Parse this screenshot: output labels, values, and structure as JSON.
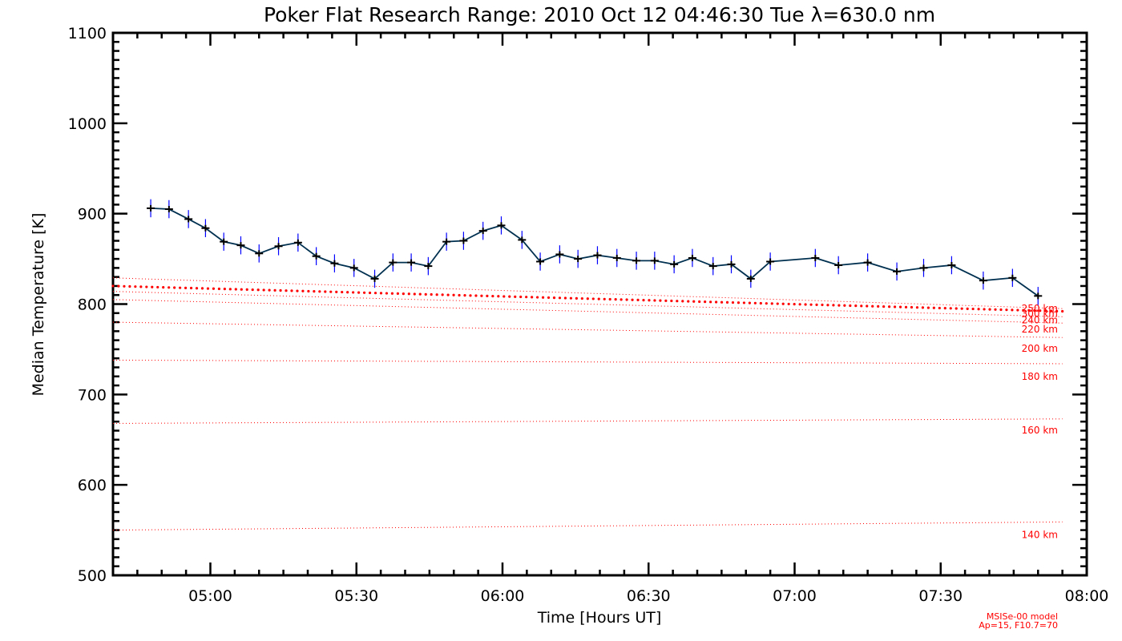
{
  "chart_data": {
    "type": "line",
    "title": "Poker Flat Research Range: 2010 Oct 12 04:46:30 Tue λ=630.0 nm",
    "xlabel": "Time [Hours UT]",
    "ylabel": "Median Temperature [K]",
    "xlim": [
      "04:40",
      "08:00"
    ],
    "ylim": [
      500,
      1100
    ],
    "x_ticks": [
      "05:00",
      "05:30",
      "06:00",
      "06:30",
      "07:00",
      "07:30",
      "08:00"
    ],
    "y_ticks": [
      "500",
      "600",
      "700",
      "800",
      "900",
      "1000",
      "1100"
    ],
    "grid": false,
    "series": [
      {
        "name": "",
        "color": "#003050",
        "marker": "plus",
        "x": [
          "04:47:45",
          "04:51:30",
          "04:55:30",
          "04:59:00",
          "05:02:45",
          "05:06:15",
          "05:10:00",
          "05:14:00",
          "05:18:00",
          "05:21:45",
          "05:25:30",
          "05:29:30",
          "05:33:45",
          "05:37:30",
          "05:41:15",
          "05:44:45",
          "05:48:30",
          "05:52:00",
          "05:56:00",
          "05:59:45",
          "06:04:00",
          "06:07:45",
          "06:11:45",
          "06:15:30",
          "06:19:30",
          "06:23:30",
          "06:27:30",
          "06:31:15",
          "06:35:15",
          "06:39:00",
          "06:43:15",
          "06:47:00",
          "06:51:00",
          "06:55:00",
          "07:04:15",
          "07:09:00",
          "07:15:00",
          "07:21:00",
          "07:26:30",
          "07:32:15",
          "07:38:45",
          "07:44:45",
          "07:50:00"
        ],
        "values": [
          906,
          905,
          894,
          884,
          869,
          865,
          856,
          864,
          868,
          853,
          845,
          840,
          828,
          846,
          846,
          842,
          869,
          870,
          881,
          887,
          871,
          847,
          855,
          850,
          854,
          851,
          848,
          848,
          844,
          851,
          842,
          844,
          828,
          847,
          851,
          843,
          846,
          836,
          840,
          843,
          826,
          829,
          809
        ],
        "error": 10
      }
    ],
    "model_curves": [
      {
        "label": "300 km",
        "color": "#ff0000",
        "style": "dots",
        "start": 820,
        "end": 792
      },
      {
        "label": "250 km",
        "color": "#ff0000",
        "style": "dotted",
        "start": 829,
        "end": 795
      },
      {
        "label": "240 km",
        "color": "#ff0000",
        "style": "dotted",
        "start": 814,
        "end": 786
      },
      {
        "label": "220 km",
        "color": "#ff0000",
        "style": "dotted",
        "start": 805,
        "end": 779
      },
      {
        "label": "200 km",
        "color": "#ff0000",
        "style": "dotted",
        "start": 780,
        "end": 763
      },
      {
        "label": "180 km",
        "color": "#ff0000",
        "style": "dotted",
        "start": 738,
        "end": 734
      },
      {
        "label": "160 km",
        "color": "#ff0000",
        "style": "dotted",
        "start": 668,
        "end": 673
      },
      {
        "label": "140 km",
        "color": "#ff0000",
        "style": "dotted",
        "start": 550,
        "end": 559
      }
    ],
    "model_note": [
      "MSISe-00 model",
      "Ap=15, F10.7=70"
    ]
  }
}
